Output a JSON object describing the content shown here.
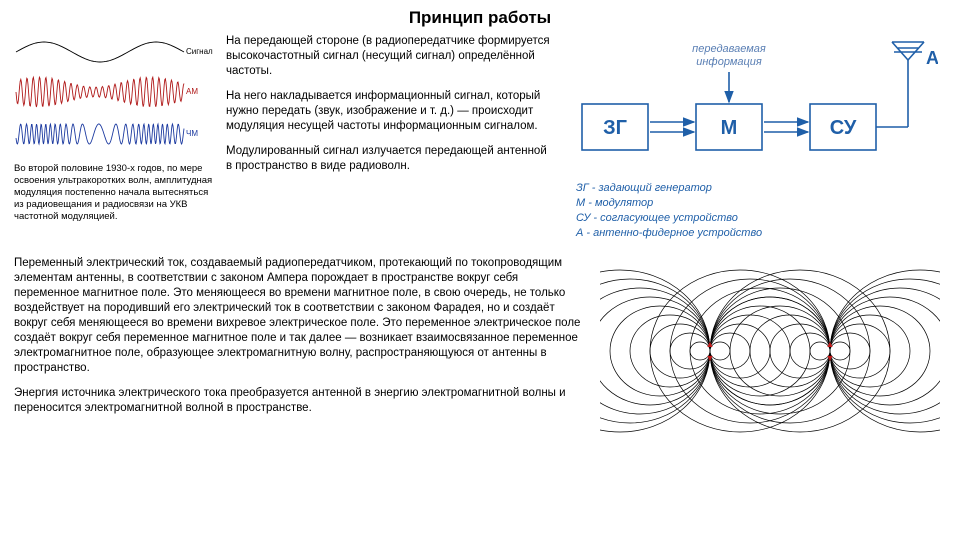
{
  "title": "Принцип работы",
  "modulation": {
    "labels": {
      "signal": "Сигнал",
      "am": "АМ",
      "fm": "ЧМ"
    },
    "caption": "Во второй половине 1930-х годов, по мере освоения ультракоротких волн, амплитудная модуляция постепенно начала вытесняться из радиовещания и радиосвязи на УКВ частотной модуляцией.",
    "signal_color": "#000000",
    "am_color": "#b01818",
    "fm_color": "#1c3aa0",
    "line_width": 0.9
  },
  "mid_paragraphs": [
    "На передающей стороне (в радиопередатчике формируется высокочастотный сигнал (несущий сигнал) определённой частоты.",
    "На него накладывается информационный сигнал, который нужно передать (звук, изображение и т. д.) — происходит модуляция несущей частоты информационным сигналом.",
    "Модулированный сигнал излучается передающей антенной в пространство в виде радиоволн."
  ],
  "block_diagram": {
    "label_info": "передаваемая информация",
    "antenna_label": "А",
    "blocks": {
      "zg": "ЗГ",
      "m": "М",
      "su": "СУ"
    },
    "box_stroke": "#1f5fa8",
    "box_fill": "#ffffff",
    "text_color": "#1f5fa8",
    "arrow_color": "#1f5fa8",
    "info_color": "#5a7fb4",
    "box_stroke_width": 1.6,
    "antenna_color": "#1f5fa8",
    "font_size_box": 20,
    "font_size_A": 18,
    "legend": {
      "zg": "ЗГ - задающий генератор",
      "m": "М - модулятор",
      "su": "СУ - согласующее устройство",
      "a": "А - антенно-фидерное устройство"
    }
  },
  "bottom_paragraphs": [
    "Переменный электрический ток, создаваемый радиопередатчиком, протекающий по токопроводящим элементам антенны, в соответствии с законом Ампера порождает в пространстве вокруг себя переменное магнитное поле. Это меняющееся во времени магнитное поле, в свою очередь, не только воздействует на породивший его электрический ток в соответствии с законом Фарадея, но и создаёт вокруг себя меняющееся во времени вихревое электрическое поле. Это переменное электрическое поле создаёт вокруг себя переменное магнитное поле и так далее — возникает взаимосвязанное переменное электромагнитное поле, образующее электромагнитную волну, распространяющуюся от антенны в пространство.",
    "Энергия источника электрического тока преобразуется антенной в энергию электромагнитной волны и переносится электромагнитной волной в пространстве."
  ],
  "field_diagram": {
    "stroke": "#000000",
    "line_width": 0.7,
    "marker_color": "#c01818"
  }
}
